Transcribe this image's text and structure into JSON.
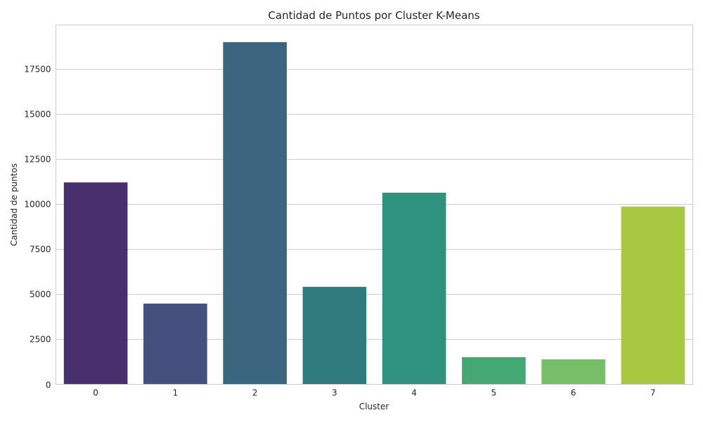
{
  "chart_data": {
    "type": "bar",
    "title": "Cantidad de Puntos por Cluster K-Means",
    "xlabel": "Cluster",
    "ylabel": "Cantidad de puntos",
    "categories": [
      "0",
      "1",
      "2",
      "3",
      "4",
      "5",
      "6",
      "7"
    ],
    "values": [
      11200,
      4480,
      18980,
      5410,
      10630,
      1510,
      1390,
      9860
    ],
    "colors": [
      "#482f6e",
      "#46507f",
      "#3c667f",
      "#307b7e",
      "#2e927e",
      "#44a874",
      "#76bf66",
      "#a7c840"
    ],
    "yticks": [
      0,
      2500,
      5000,
      7500,
      10000,
      12500,
      15000,
      17500
    ],
    "ylim": [
      0,
      19930
    ],
    "grid": "horizontal",
    "legend": "none"
  }
}
